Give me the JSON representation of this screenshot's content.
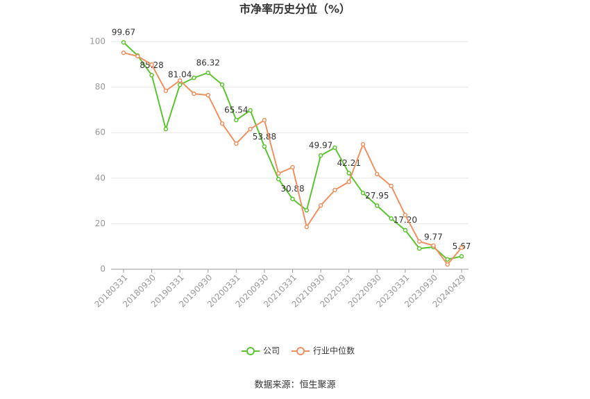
{
  "chart_data": {
    "type": "line",
    "title": "市净率历史分位（%）",
    "source": "数据来源：恒生聚源",
    "categories": [
      "20180331",
      null,
      "20180930",
      null,
      "20190331",
      null,
      "20190930",
      null,
      "20200331",
      null,
      "20200930",
      null,
      "20210331",
      null,
      "20210930",
      null,
      "20220331",
      null,
      "20220930",
      null,
      "20230331",
      null,
      "20230930",
      null,
      "20240429"
    ],
    "series": [
      {
        "name": "公司",
        "color": "#5bc42e",
        "values": [
          99.67,
          93.9,
          85.28,
          61.6,
          81.04,
          84.1,
          86.32,
          81.1,
          65.54,
          69.8,
          53.88,
          39.6,
          30.88,
          25.9,
          49.97,
          53.4,
          42.21,
          33.5,
          27.95,
          22.3,
          17.2,
          9.1,
          9.77,
          4.3,
          5.67
        ],
        "value_labels": [
          "99.67",
          null,
          "85.28",
          null,
          "81.04",
          null,
          "86.32",
          null,
          "65.54",
          null,
          "53.88",
          null,
          "30.88",
          null,
          "49.97",
          null,
          "42.21",
          null,
          "27.95",
          null,
          "17.20",
          null,
          "9.77",
          null,
          "5.67"
        ]
      },
      {
        "name": "行业中位数",
        "color": "#f0905f",
        "values": [
          95.1,
          93.6,
          89.9,
          78.4,
          82.9,
          77.1,
          76.5,
          64.0,
          55.2,
          61.6,
          65.5,
          42.1,
          44.8,
          18.6,
          28.0,
          34.8,
          38.4,
          54.9,
          41.8,
          36.6,
          23.8,
          12.2,
          10.4,
          2.1,
          9.5
        ]
      }
    ],
    "ylim": [
      0,
      100
    ],
    "yticks": [
      0,
      20,
      40,
      60,
      80,
      100
    ],
    "grid": true
  }
}
